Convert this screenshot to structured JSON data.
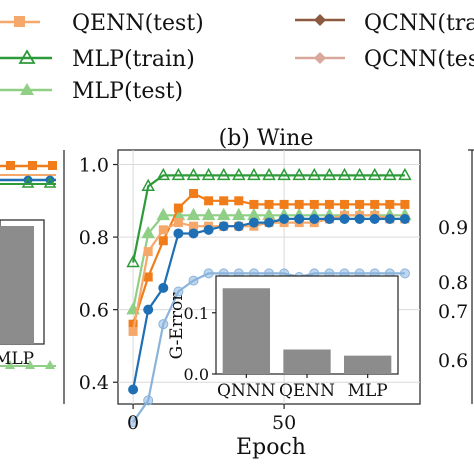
{
  "legend": {
    "entries": [
      {
        "label": "QENN(test)",
        "color": "#f5a86a",
        "marker": "square"
      },
      {
        "label": "MLP(train)",
        "color": "#2e9b3a",
        "marker": "triangle"
      },
      {
        "label": "MLP(test)",
        "color": "#8fcf86",
        "marker": "triangle"
      },
      {
        "label": "QCNN(train",
        "color": "#8b5a40",
        "marker": "diamond"
      },
      {
        "label": "QCNN(test)",
        "color": "#d8a89a",
        "marker": "diamond"
      }
    ]
  },
  "left_partial": {
    "inset_bar_label": "MLP",
    "color_orange": "#f07d1a",
    "color_green": "#2e9b3a",
    "color_blue": "#1f6fb4",
    "color_lightgreen": "#8fcf86"
  },
  "right_partial": {
    "ticks": [
      "0.9",
      "0.8",
      "0.7",
      "0.6"
    ]
  },
  "colors": {
    "qnnn_train": "#f07d1a",
    "qenn_test": "#f5a86a",
    "mlp_train": "#2e9b3a",
    "mlp_test": "#8fcf86",
    "qnnn_blue": "#1f6fb4",
    "qnnn_blue_test": "#8ab4dc",
    "gray_bar": "#8c8c8c"
  },
  "chart_data": {
    "type": "line",
    "title": "(b) Wine",
    "xlabel": "Epoch",
    "ylabel": "",
    "xlim": [
      -5,
      95
    ],
    "ylim": [
      0.34,
      1.04
    ],
    "xticks": [
      "0",
      "50"
    ],
    "yticks": [
      "0.4",
      "0.6",
      "0.8",
      "1.0"
    ],
    "grid": true,
    "x": [
      0,
      5,
      10,
      15,
      20,
      25,
      30,
      35,
      40,
      45,
      50,
      55,
      60,
      65,
      70,
      75,
      80,
      85,
      90
    ],
    "series": [
      {
        "color_key": "mlp_train",
        "marker": "triangle",
        "values": [
          0.73,
          0.94,
          0.97,
          0.97,
          0.97,
          0.97,
          0.97,
          0.97,
          0.97,
          0.97,
          0.97,
          0.97,
          0.97,
          0.97,
          0.97,
          0.97,
          0.97,
          0.97,
          0.97
        ]
      },
      {
        "color_key": "mlp_test",
        "marker": "triangle",
        "values": [
          0.6,
          0.81,
          0.86,
          0.86,
          0.86,
          0.86,
          0.86,
          0.86,
          0.86,
          0.86,
          0.86,
          0.86,
          0.86,
          0.86,
          0.86,
          0.86,
          0.86,
          0.86,
          0.86
        ]
      },
      {
        "color_key": "qnnn_train",
        "marker": "square",
        "values": [
          0.56,
          0.69,
          0.79,
          0.88,
          0.92,
          0.9,
          0.9,
          0.9,
          0.89,
          0.89,
          0.89,
          0.89,
          0.89,
          0.89,
          0.89,
          0.89,
          0.89,
          0.89,
          0.89
        ]
      },
      {
        "color_key": "qenn_test",
        "marker": "square",
        "values": [
          0.54,
          0.76,
          0.82,
          0.84,
          0.83,
          0.83,
          0.83,
          0.83,
          0.83,
          0.84,
          0.84,
          0.84,
          0.84,
          0.85,
          0.86,
          0.86,
          0.86,
          0.85,
          0.85
        ]
      },
      {
        "color_key": "qnnn_blue",
        "marker": "circle",
        "values": [
          0.38,
          0.6,
          0.66,
          0.81,
          0.81,
          0.82,
          0.83,
          0.83,
          0.84,
          0.84,
          0.85,
          0.85,
          0.85,
          0.85,
          0.85,
          0.85,
          0.85,
          0.85,
          0.85
        ]
      },
      {
        "color_key": "qnnn_blue_test",
        "marker": "circle",
        "values": [
          0.29,
          0.35,
          0.56,
          0.65,
          0.68,
          0.7,
          0.7,
          0.7,
          0.7,
          0.7,
          0.7,
          0.69,
          0.7,
          0.7,
          0.7,
          0.7,
          0.7,
          0.7,
          0.7
        ]
      }
    ],
    "inset": {
      "type": "bar",
      "ylabel": "G-Error",
      "categories": [
        "QNNN",
        "QENN",
        "MLP"
      ],
      "values": [
        0.14,
        0.04,
        0.03
      ],
      "ylim": [
        0,
        0.16
      ],
      "yticks": [
        "0.0",
        "0.1"
      ]
    }
  }
}
